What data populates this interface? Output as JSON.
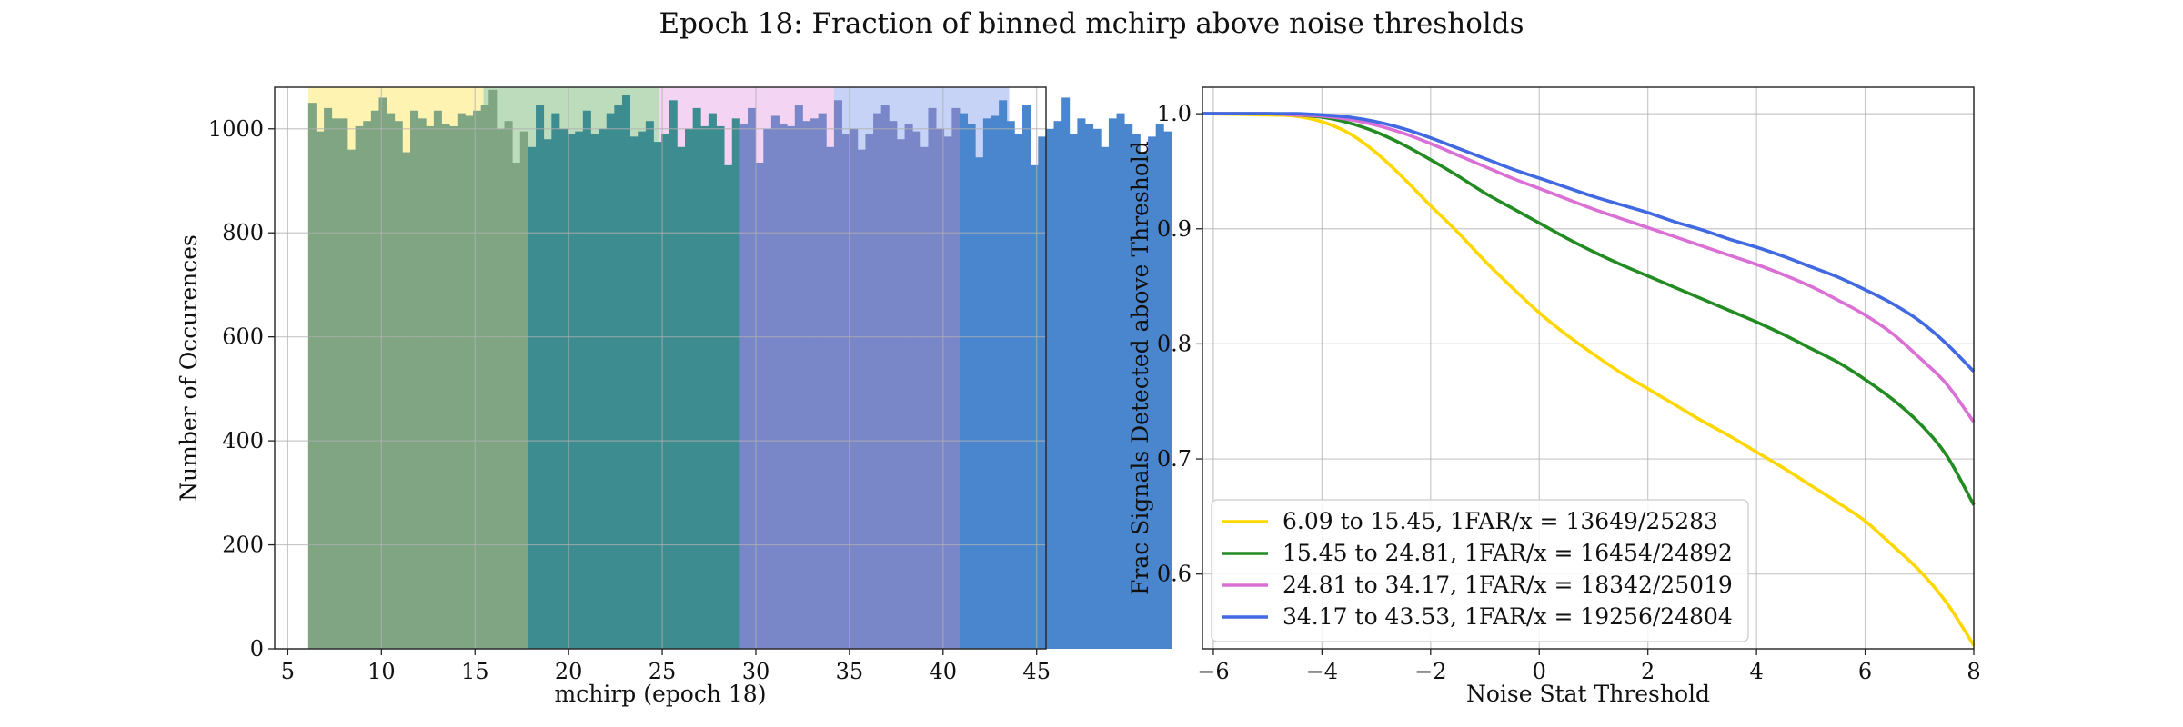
{
  "figure": {
    "title": "Epoch 18: Fraction of binned mchirp above noise thresholds"
  },
  "chart_data": [
    {
      "type": "bar",
      "xlabel": "mchirp (epoch 18)",
      "ylabel": "Number of Occurences",
      "xlim": [
        4.3,
        45.5
      ],
      "ylim": [
        0,
        1080
      ],
      "xticks": [
        5,
        10,
        15,
        20,
        25,
        30,
        35,
        40,
        45
      ],
      "yticks": [
        0,
        200,
        400,
        600,
        800,
        1000
      ],
      "grid": true,
      "range_bands": [
        {
          "from": 6.09,
          "to": 15.45,
          "color": "#FFD700"
        },
        {
          "from": 15.45,
          "to": 24.81,
          "color": "#228B22"
        },
        {
          "from": 24.81,
          "to": 34.17,
          "color": "#DA70D6"
        },
        {
          "from": 34.17,
          "to": 43.53,
          "color": "#4169E1"
        }
      ],
      "bin_edges_start": 6.09,
      "bin_width": 0.4192,
      "bar_colors": [
        "#7FA582",
        "#3D8C8F",
        "#7986C8",
        "#4A86CE"
      ],
      "counts": [
        1050,
        995,
        1040,
        1020,
        1020,
        960,
        1005,
        1015,
        1035,
        1060,
        1030,
        1015,
        955,
        1035,
        1020,
        1005,
        1035,
        1010,
        1005,
        1030,
        1025,
        1035,
        1045,
        1075,
        1000,
        1015,
        935,
        995,
        965,
        1045,
        980,
        1030,
        1000,
        990,
        995,
        1035,
        990,
        1000,
        1030,
        1045,
        1065,
        985,
        995,
        1015,
        975,
        990,
        1055,
        965,
        1000,
        1040,
        1005,
        1030,
        1005,
        930,
        1020,
        1010,
        1040,
        935,
        1000,
        1025,
        1010,
        1005,
        1045,
        1015,
        1020,
        1030,
        965,
        1055,
        990,
        1000,
        960,
        990,
        1030,
        1045,
        1015,
        980,
        1010,
        995,
        965,
        1040,
        1000,
        985,
        1040,
        1030,
        1010,
        945,
        1020,
        1025,
        1055,
        1015,
        990,
        1045,
        930,
        985,
        1000,
        1015,
        1060,
        990,
        1020,
        1010,
        1000,
        965,
        1020,
        1030,
        1010,
        990,
        955,
        985,
        1010,
        995
      ]
    },
    {
      "type": "line",
      "xlabel": "Noise Stat Threshold",
      "ylabel": "Frac Signals Detected above Threshold",
      "xlim": [
        -6.2,
        8
      ],
      "ylim": [
        0.535,
        1.023
      ],
      "xticks": [
        -6,
        -4,
        -2,
        0,
        2,
        4,
        6,
        8
      ],
      "xtick_labels": [
        "−6",
        "−4",
        "−2",
        "0",
        "2",
        "4",
        "6",
        "8"
      ],
      "yticks": [
        0.6,
        0.7,
        0.8,
        0.9,
        1.0
      ],
      "ytick_labels": [
        "0.6",
        "0.7",
        "0.8",
        "0.9",
        "1.0"
      ],
      "grid": true,
      "legend_position": "lower-left",
      "series": [
        {
          "name": "6.09 to 15.45, 1FAR/x = 13649/25283",
          "color": "#FFD700",
          "x": [
            -6.2,
            -5,
            -4.5,
            -4,
            -3.5,
            -3,
            -2.5,
            -2,
            -1.5,
            -1,
            -0.5,
            0,
            0.5,
            1,
            1.5,
            2,
            2.5,
            3,
            3.5,
            4,
            4.5,
            5,
            5.5,
            6,
            6.5,
            7,
            7.5,
            8
          ],
          "y": [
            1.0,
            0.999,
            0.998,
            0.993,
            0.983,
            0.966,
            0.944,
            0.92,
            0.897,
            0.872,
            0.849,
            0.827,
            0.808,
            0.791,
            0.775,
            0.761,
            0.747,
            0.733,
            0.72,
            0.706,
            0.692,
            0.677,
            0.662,
            0.646,
            0.625,
            0.603,
            0.575,
            0.538
          ]
        },
        {
          "name": "15.45 to 24.81, 1FAR/x = 16454/24892",
          "color": "#228B22",
          "x": [
            -6.2,
            -5,
            -4.5,
            -4,
            -3.5,
            -3,
            -2.5,
            -2,
            -1.5,
            -1,
            -0.5,
            0,
            0.5,
            1,
            1.5,
            2,
            2.5,
            3,
            3.5,
            4,
            4.5,
            5,
            5.5,
            6,
            6.5,
            7,
            7.5,
            8
          ],
          "y": [
            1.0,
            1.0,
            0.999,
            0.997,
            0.992,
            0.984,
            0.973,
            0.96,
            0.946,
            0.931,
            0.918,
            0.905,
            0.892,
            0.88,
            0.869,
            0.859,
            0.849,
            0.839,
            0.829,
            0.819,
            0.808,
            0.796,
            0.784,
            0.769,
            0.752,
            0.731,
            0.703,
            0.66
          ]
        },
        {
          "name": "24.81 to 34.17, 1FAR/x = 18342/25019",
          "color": "#DA70D6",
          "x": [
            -6.2,
            -5,
            -4.5,
            -4,
            -3.5,
            -3,
            -2.5,
            -2,
            -1.5,
            -1,
            -0.5,
            0,
            0.5,
            1,
            1.5,
            2,
            2.5,
            3,
            3.5,
            4,
            4.5,
            5,
            5.5,
            6,
            6.5,
            7,
            7.5,
            8
          ],
          "y": [
            1.0,
            1.0,
            0.999,
            0.998,
            0.995,
            0.99,
            0.983,
            0.974,
            0.964,
            0.954,
            0.944,
            0.935,
            0.926,
            0.917,
            0.909,
            0.901,
            0.893,
            0.885,
            0.877,
            0.869,
            0.86,
            0.85,
            0.838,
            0.825,
            0.809,
            0.788,
            0.765,
            0.732
          ]
        },
        {
          "name": "34.17 to 43.53, 1FAR/x = 19256/24804",
          "color": "#4169E1",
          "x": [
            -6.2,
            -5,
            -4.5,
            -4,
            -3.5,
            -3,
            -2.5,
            -2,
            -1.5,
            -1,
            -0.5,
            0,
            0.5,
            1,
            1.5,
            2,
            2.5,
            3,
            3.5,
            4,
            4.5,
            5,
            5.5,
            6,
            6.5,
            7,
            7.5,
            8
          ],
          "y": [
            1.0,
            1.0,
            1.0,
            0.999,
            0.997,
            0.993,
            0.987,
            0.979,
            0.97,
            0.961,
            0.952,
            0.944,
            0.936,
            0.928,
            0.921,
            0.914,
            0.906,
            0.899,
            0.891,
            0.884,
            0.876,
            0.867,
            0.858,
            0.847,
            0.835,
            0.82,
            0.8,
            0.776
          ]
        }
      ]
    }
  ]
}
